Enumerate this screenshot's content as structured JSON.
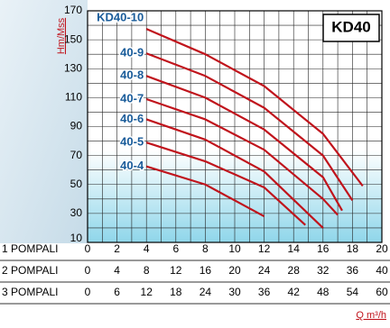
{
  "chart_data": {
    "type": "line",
    "title": "KD40",
    "y_label": "Hm/Mss",
    "x_label": "Q m³/h",
    "ylim": [
      10,
      170
    ],
    "yticks": [
      10,
      30,
      50,
      70,
      90,
      110,
      130,
      150,
      170
    ],
    "ygrid": [
      10,
      20,
      30,
      40,
      50,
      60,
      70,
      80,
      90,
      100,
      110,
      120,
      130,
      140,
      150,
      160,
      170
    ],
    "xlim": [
      0,
      20
    ],
    "xgrid": [
      0,
      1,
      2,
      3,
      4,
      5,
      6,
      7,
      8,
      9,
      10,
      11,
      12,
      13,
      14,
      15,
      16,
      17,
      18,
      19,
      20
    ],
    "x_scales": [
      {
        "name": "1 POMPALI",
        "xlim": [
          0,
          20
        ],
        "ticks": [
          0,
          2,
          4,
          6,
          8,
          10,
          12,
          14,
          16,
          18,
          20
        ]
      },
      {
        "name": "2 POMPALI",
        "xlim": [
          0,
          40
        ],
        "ticks": [
          0,
          4,
          8,
          12,
          16,
          20,
          24,
          28,
          32,
          36,
          40
        ]
      },
      {
        "name": "3 POMPALI",
        "xlim": [
          0,
          60
        ],
        "ticks": [
          0,
          6,
          12,
          18,
          24,
          30,
          36,
          42,
          48,
          54,
          60
        ]
      }
    ],
    "grid": true,
    "series": [
      {
        "name": "KD40-10",
        "color": "#c0141c",
        "x": [
          4,
          8,
          12,
          16,
          18.7
        ],
        "values": [
          157.5,
          140,
          118,
          85,
          49
        ]
      },
      {
        "name": "40-9",
        "color": "#c0141c",
        "x": [
          4,
          8,
          12,
          16,
          18
        ],
        "values": [
          140.6,
          125,
          103,
          70,
          39
        ]
      },
      {
        "name": "40-8",
        "color": "#c0141c",
        "x": [
          4,
          8,
          12,
          16,
          17.3
        ],
        "values": [
          125,
          110,
          88,
          55,
          32
        ]
      },
      {
        "name": "40-7",
        "color": "#c0141c",
        "x": [
          4,
          8,
          12,
          16,
          17
        ],
        "values": [
          109,
          95,
          74,
          40,
          29
        ]
      },
      {
        "name": "40-6",
        "color": "#c0141c",
        "x": [
          4,
          8,
          12,
          16
        ],
        "values": [
          95,
          81,
          59,
          20
        ]
      },
      {
        "name": "40-5",
        "color": "#c0141c",
        "x": [
          4,
          8,
          12,
          14.8
        ],
        "values": [
          79,
          66,
          48,
          22
        ]
      },
      {
        "name": "40-4",
        "color": "#c0141c",
        "x": [
          4,
          8,
          12
        ],
        "values": [
          62.5,
          50,
          28
        ]
      }
    ]
  }
}
